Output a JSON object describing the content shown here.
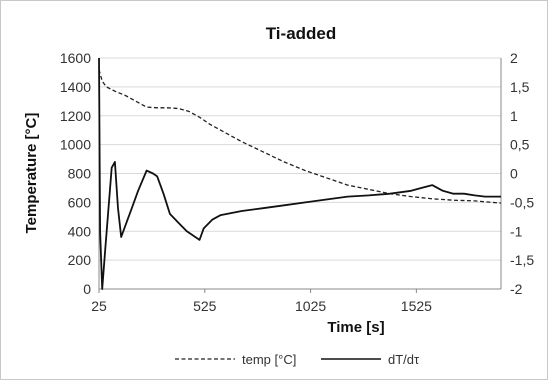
{
  "chart_data": {
    "type": "line",
    "title": "Ti-added",
    "xlabel": "Time [s]",
    "ylabel": "Temperature [°C]",
    "y2label": "",
    "xlim": [
      25,
      1925
    ],
    "ylim": [
      0,
      1600
    ],
    "y2lim": [
      -2,
      2
    ],
    "x_ticks": [
      25,
      525,
      1025,
      1525
    ],
    "x_tick_labels": [
      "25",
      "525",
      "1025",
      "1525"
    ],
    "y_ticks": [
      0,
      200,
      400,
      600,
      800,
      1000,
      1200,
      1400,
      1600
    ],
    "y_tick_labels": [
      "0",
      "200",
      "400",
      "600",
      "800",
      "1000",
      "1200",
      "1400",
      "1600"
    ],
    "y2_ticks": [
      2,
      1.5,
      1,
      0.5,
      0,
      -0.5,
      -1,
      -1.5,
      -2
    ],
    "y2_tick_labels": [
      "2",
      "1,5",
      "1",
      "0,5",
      "0",
      "-0,5",
      "-1",
      "-1,5",
      "-2"
    ],
    "grid": "horizontal",
    "legend_position": "bottom",
    "series": [
      {
        "name": "temp [°C]",
        "axis": "left",
        "style": "dashed",
        "color": "#222222",
        "x": [
          25,
          40,
          60,
          100,
          150,
          200,
          250,
          300,
          350,
          400,
          450,
          500,
          550,
          600,
          700,
          800,
          900,
          1000,
          1100,
          1200,
          1300,
          1400,
          1500,
          1600,
          1700,
          1800,
          1925
        ],
        "y": [
          1520,
          1440,
          1400,
          1370,
          1340,
          1300,
          1260,
          1255,
          1255,
          1250,
          1230,
          1190,
          1140,
          1100,
          1020,
          950,
          880,
          820,
          770,
          720,
          690,
          660,
          640,
          625,
          615,
          610,
          595
        ]
      },
      {
        "name": "dT/dτ",
        "axis": "right",
        "style": "solid",
        "color": "#111111",
        "x": [
          25,
          30,
          40,
          55,
          70,
          85,
          100,
          115,
          130,
          150,
          180,
          210,
          250,
          280,
          300,
          330,
          360,
          400,
          440,
          480,
          500,
          520,
          560,
          600,
          700,
          800,
          900,
          1000,
          1100,
          1200,
          1300,
          1400,
          1500,
          1550,
          1600,
          1650,
          1700,
          1750,
          1800,
          1850,
          1925
        ],
        "y": [
          2,
          -1,
          -2,
          -1.3,
          -0.6,
          0.1,
          0.2,
          -0.6,
          -1.1,
          -0.9,
          -0.6,
          -0.3,
          0.05,
          0,
          -0.05,
          -0.35,
          -0.7,
          -0.85,
          -1,
          -1.1,
          -1.15,
          -0.95,
          -0.8,
          -0.72,
          -0.65,
          -0.6,
          -0.55,
          -0.5,
          -0.45,
          -0.4,
          -0.38,
          -0.35,
          -0.3,
          -0.25,
          -0.2,
          -0.3,
          -0.35,
          -0.35,
          -0.38,
          -0.4,
          -0.4
        ]
      }
    ]
  }
}
